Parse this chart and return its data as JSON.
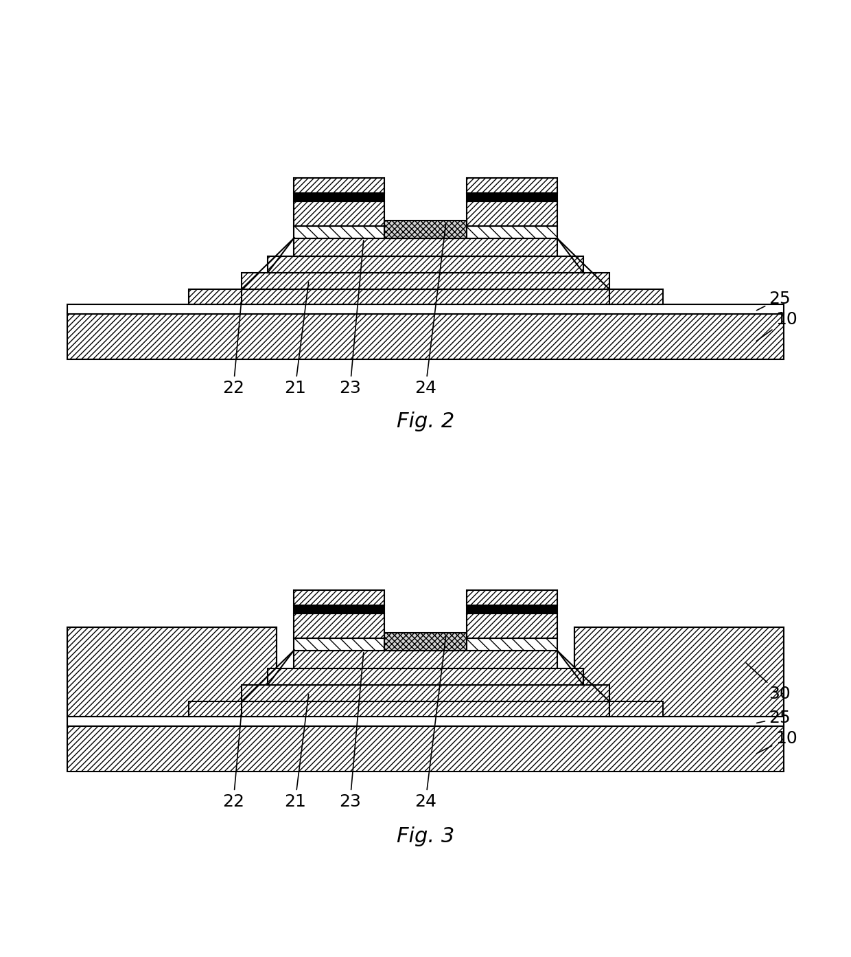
{
  "bg_color": "#ffffff",
  "line_color": "#000000",
  "fig_width": 12.4,
  "fig_height": 13.93,
  "fig2_label": "Fig. 2",
  "fig3_label": "Fig. 3",
  "label_fontsize": 22,
  "annot_fontsize": 18,
  "lw": 1.5
}
